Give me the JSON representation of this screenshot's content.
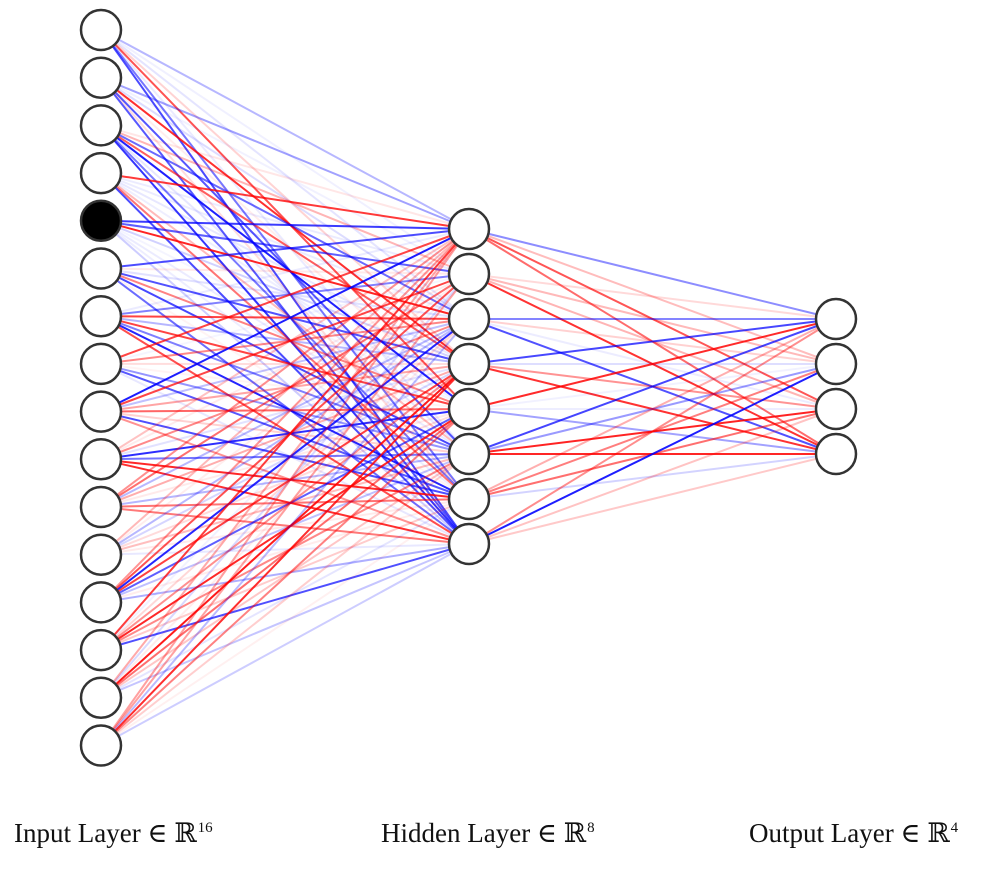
{
  "diagram": {
    "layers": [
      {
        "name": "Input Layer",
        "symbol": "∈ ℝ",
        "dimension": "16",
        "nodes": 16,
        "active_node_index": 4
      },
      {
        "name": "Hidden Layer",
        "symbol": "∈ ℝ",
        "dimension": "8",
        "nodes": 8
      },
      {
        "name": "Output Layer",
        "symbol": "∈ ℝ",
        "dimension": "4",
        "nodes": 4
      }
    ],
    "colors": {
      "positive_weight": "#ff0000",
      "negative_weight": "#0000ff",
      "node_fill": "#ffffff",
      "node_stroke": "#333333",
      "active_node_fill": "#000000"
    }
  }
}
